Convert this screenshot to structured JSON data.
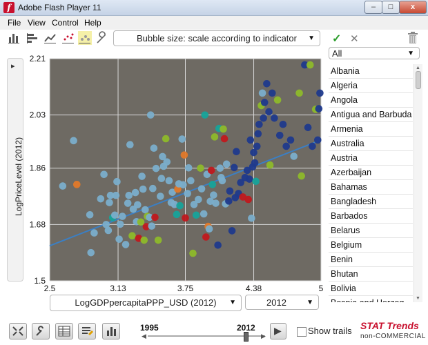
{
  "window": {
    "title": "Adobe Flash Player 11",
    "app_icon": "f",
    "minimize": "–",
    "maximize": "□",
    "close": "x"
  },
  "menu": [
    "File",
    "View",
    "Control",
    "Help"
  ],
  "toolbar": {
    "icons": [
      "bar-chart-icon",
      "horizontal-bar-icon",
      "line-chart-icon",
      "scatter-icon",
      "bubble-chart-icon",
      "wrench-icon"
    ],
    "bubble_size": "Bubble size: scale according to indicator",
    "confirm": "✓",
    "cancel": "✕"
  },
  "sidebar_toggle": "▸",
  "filter": {
    "selected": "All"
  },
  "countries": [
    "Albania",
    "Algeria",
    "Angola",
    "Antigua and Barbuda",
    "Armenia",
    "Australia",
    "Austria",
    "Azerbaijan",
    "Bahamas",
    "Bangladesh",
    "Barbados",
    "Belarus",
    "Belgium",
    "Benin",
    "Bhutan",
    "Bolivia",
    "Bosnia and Herzeg..."
  ],
  "x_selector": {
    "indicator": "LogGDPpercapitaPPP_USD  (2012)",
    "year": "2012"
  },
  "colors": {
    "plot_bg": "#6e6a63",
    "light_blue": "#7aaecb",
    "dark_blue": "#1f3a8c",
    "green": "#8db92a",
    "red": "#c0191e",
    "teal": "#16a39a",
    "orange": "#e0792a",
    "trend": "#3b7fc4",
    "accent_red": "#c8102e"
  },
  "chart_data": {
    "type": "scatter",
    "title": "",
    "xlabel": "LogGDPpercapitaPPP_USD  (2012)",
    "ylabel": "LogPriceLevel (2012)",
    "xlim": [
      2.5,
      5
    ],
    "ylim": [
      1.5,
      2.21
    ],
    "x_ticks": [
      "2.5",
      "3.13",
      "3.75",
      "4.38",
      "5"
    ],
    "y_ticks": [
      "1.5",
      "1.68",
      "1.86",
      "2.03",
      "2.21"
    ],
    "trend_line": {
      "x": [
        2.5,
        5
      ],
      "y": [
        1.612,
        1.95
      ]
    },
    "points": [
      {
        "x": 2.62,
        "y": 1.803,
        "c": "light_blue"
      },
      {
        "x": 2.72,
        "y": 1.948,
        "c": "light_blue"
      },
      {
        "x": 2.75,
        "y": 1.808,
        "c": "orange"
      },
      {
        "x": 2.87,
        "y": 1.711,
        "c": "light_blue"
      },
      {
        "x": 2.91,
        "y": 1.653,
        "c": "light_blue"
      },
      {
        "x": 2.88,
        "y": 1.59,
        "c": "light_blue"
      },
      {
        "x": 2.97,
        "y": 1.762,
        "c": "light_blue"
      },
      {
        "x": 3.0,
        "y": 1.84,
        "c": "light_blue"
      },
      {
        "x": 3.02,
        "y": 1.68,
        "c": "light_blue"
      },
      {
        "x": 3.04,
        "y": 1.661,
        "c": "light_blue"
      },
      {
        "x": 3.05,
        "y": 1.75,
        "c": "light_blue"
      },
      {
        "x": 3.06,
        "y": 1.773,
        "c": "light_blue"
      },
      {
        "x": 3.08,
        "y": 1.702,
        "c": "teal"
      },
      {
        "x": 3.1,
        "y": 1.71,
        "c": "light_blue"
      },
      {
        "x": 3.11,
        "y": 1.773,
        "c": "light_blue"
      },
      {
        "x": 3.12,
        "y": 1.817,
        "c": "light_blue"
      },
      {
        "x": 3.14,
        "y": 1.633,
        "c": "light_blue"
      },
      {
        "x": 3.15,
        "y": 1.681,
        "c": "light_blue"
      },
      {
        "x": 3.17,
        "y": 1.706,
        "c": "light_blue"
      },
      {
        "x": 3.2,
        "y": 1.616,
        "c": "light_blue"
      },
      {
        "x": 3.22,
        "y": 1.748,
        "c": "light_blue"
      },
      {
        "x": 3.23,
        "y": 1.773,
        "c": "light_blue"
      },
      {
        "x": 3.24,
        "y": 1.935,
        "c": "light_blue"
      },
      {
        "x": 3.26,
        "y": 1.644,
        "c": "green"
      },
      {
        "x": 3.27,
        "y": 1.729,
        "c": "light_blue"
      },
      {
        "x": 3.29,
        "y": 1.782,
        "c": "light_blue"
      },
      {
        "x": 3.3,
        "y": 1.689,
        "c": "light_blue"
      },
      {
        "x": 3.31,
        "y": 1.743,
        "c": "light_blue"
      },
      {
        "x": 3.32,
        "y": 1.636,
        "c": "red"
      },
      {
        "x": 3.34,
        "y": 1.688,
        "c": "green"
      },
      {
        "x": 3.35,
        "y": 1.834,
        "c": "light_blue"
      },
      {
        "x": 3.36,
        "y": 1.793,
        "c": "light_blue"
      },
      {
        "x": 3.37,
        "y": 1.63,
        "c": "green"
      },
      {
        "x": 3.38,
        "y": 1.727,
        "c": "light_blue"
      },
      {
        "x": 3.39,
        "y": 1.673,
        "c": "red"
      },
      {
        "x": 3.4,
        "y": 1.706,
        "c": "green"
      },
      {
        "x": 3.42,
        "y": 1.703,
        "c": "light_blue"
      },
      {
        "x": 3.43,
        "y": 2.03,
        "c": "light_blue"
      },
      {
        "x": 3.44,
        "y": 1.675,
        "c": "light_blue"
      },
      {
        "x": 3.45,
        "y": 1.795,
        "c": "light_blue"
      },
      {
        "x": 3.46,
        "y": 1.924,
        "c": "light_blue"
      },
      {
        "x": 3.47,
        "y": 1.703,
        "c": "red"
      },
      {
        "x": 3.48,
        "y": 1.859,
        "c": "light_blue"
      },
      {
        "x": 3.5,
        "y": 1.63,
        "c": "green"
      },
      {
        "x": 3.52,
        "y": 1.77,
        "c": "light_blue"
      },
      {
        "x": 3.53,
        "y": 1.827,
        "c": "light_blue"
      },
      {
        "x": 3.54,
        "y": 1.897,
        "c": "light_blue"
      },
      {
        "x": 3.55,
        "y": 1.866,
        "c": "light_blue"
      },
      {
        "x": 3.57,
        "y": 1.954,
        "c": "green"
      },
      {
        "x": 3.58,
        "y": 1.88,
        "c": "light_blue"
      },
      {
        "x": 3.6,
        "y": 1.82,
        "c": "light_blue"
      },
      {
        "x": 3.62,
        "y": 1.75,
        "c": "light_blue"
      },
      {
        "x": 3.63,
        "y": 1.783,
        "c": "light_blue"
      },
      {
        "x": 3.65,
        "y": 1.744,
        "c": "light_blue"
      },
      {
        "x": 3.67,
        "y": 1.712,
        "c": "teal"
      },
      {
        "x": 3.68,
        "y": 1.793,
        "c": "orange"
      },
      {
        "x": 3.69,
        "y": 1.81,
        "c": "light_blue"
      },
      {
        "x": 3.7,
        "y": 1.74,
        "c": "teal"
      },
      {
        "x": 3.72,
        "y": 1.953,
        "c": "light_blue"
      },
      {
        "x": 3.73,
        "y": 1.807,
        "c": "light_blue"
      },
      {
        "x": 3.74,
        "y": 1.902,
        "c": "orange"
      },
      {
        "x": 3.75,
        "y": 1.701,
        "c": "red"
      },
      {
        "x": 3.77,
        "y": 1.779,
        "c": "light_blue"
      },
      {
        "x": 3.78,
        "y": 1.861,
        "c": "light_blue"
      },
      {
        "x": 3.8,
        "y": 1.82,
        "c": "light_blue"
      },
      {
        "x": 3.82,
        "y": 1.588,
        "c": "green"
      },
      {
        "x": 3.83,
        "y": 1.744,
        "c": "light_blue"
      },
      {
        "x": 3.85,
        "y": 1.71,
        "c": "teal"
      },
      {
        "x": 3.87,
        "y": 1.76,
        "c": "light_blue"
      },
      {
        "x": 3.89,
        "y": 1.86,
        "c": "green"
      },
      {
        "x": 3.9,
        "y": 1.794,
        "c": "light_blue"
      },
      {
        "x": 3.92,
        "y": 1.714,
        "c": "light_blue"
      },
      {
        "x": 3.93,
        "y": 2.03,
        "c": "teal"
      },
      {
        "x": 3.94,
        "y": 1.64,
        "c": "red"
      },
      {
        "x": 3.95,
        "y": 1.84,
        "c": "light_blue"
      },
      {
        "x": 3.96,
        "y": 1.674,
        "c": "orange"
      },
      {
        "x": 3.97,
        "y": 1.666,
        "c": "light_blue"
      },
      {
        "x": 3.98,
        "y": 1.754,
        "c": "light_blue"
      },
      {
        "x": 3.99,
        "y": 1.853,
        "c": "red"
      },
      {
        "x": 4.0,
        "y": 1.808,
        "c": "teal"
      },
      {
        "x": 4.01,
        "y": 1.774,
        "c": "light_blue"
      },
      {
        "x": 4.02,
        "y": 1.96,
        "c": "green"
      },
      {
        "x": 4.03,
        "y": 1.748,
        "c": "light_blue"
      },
      {
        "x": 4.05,
        "y": 1.614,
        "c": "dark_blue"
      },
      {
        "x": 4.06,
        "y": 1.987,
        "c": "teal"
      },
      {
        "x": 4.07,
        "y": 1.86,
        "c": "light_blue"
      },
      {
        "x": 4.08,
        "y": 1.83,
        "c": "light_blue"
      },
      {
        "x": 4.09,
        "y": 1.82,
        "c": "light_blue"
      },
      {
        "x": 4.1,
        "y": 1.985,
        "c": "green"
      },
      {
        "x": 4.11,
        "y": 1.954,
        "c": "red"
      },
      {
        "x": 4.12,
        "y": 1.746,
        "c": "light_blue"
      },
      {
        "x": 4.13,
        "y": 1.873,
        "c": "light_blue"
      },
      {
        "x": 4.15,
        "y": 1.755,
        "c": "dark_blue"
      },
      {
        "x": 4.16,
        "y": 1.787,
        "c": "dark_blue"
      },
      {
        "x": 4.18,
        "y": 1.66,
        "c": "dark_blue"
      },
      {
        "x": 4.2,
        "y": 1.862,
        "c": "dark_blue"
      },
      {
        "x": 4.21,
        "y": 1.766,
        "c": "dark_blue"
      },
      {
        "x": 4.22,
        "y": 1.913,
        "c": "dark_blue"
      },
      {
        "x": 4.24,
        "y": 1.779,
        "c": "dark_blue"
      },
      {
        "x": 4.26,
        "y": 1.814,
        "c": "dark_blue"
      },
      {
        "x": 4.28,
        "y": 1.768,
        "c": "red"
      },
      {
        "x": 4.3,
        "y": 1.83,
        "c": "dark_blue"
      },
      {
        "x": 4.32,
        "y": 1.853,
        "c": "dark_blue"
      },
      {
        "x": 4.33,
        "y": 1.76,
        "c": "red"
      },
      {
        "x": 4.34,
        "y": 1.825,
        "c": "dark_blue"
      },
      {
        "x": 4.35,
        "y": 1.95,
        "c": "dark_blue"
      },
      {
        "x": 4.36,
        "y": 1.7,
        "c": "light_blue"
      },
      {
        "x": 4.37,
        "y": 1.864,
        "c": "dark_blue"
      },
      {
        "x": 4.38,
        "y": 1.91,
        "c": "dark_blue"
      },
      {
        "x": 4.39,
        "y": 1.877,
        "c": "dark_blue"
      },
      {
        "x": 4.4,
        "y": 1.818,
        "c": "teal"
      },
      {
        "x": 4.41,
        "y": 1.93,
        "c": "dark_blue"
      },
      {
        "x": 4.42,
        "y": 1.97,
        "c": "dark_blue"
      },
      {
        "x": 4.43,
        "y": 2.0,
        "c": "dark_blue"
      },
      {
        "x": 4.45,
        "y": 2.06,
        "c": "green"
      },
      {
        "x": 4.46,
        "y": 2.1,
        "c": "light_blue"
      },
      {
        "x": 4.47,
        "y": 2.02,
        "c": "dark_blue"
      },
      {
        "x": 4.48,
        "y": 2.07,
        "c": "dark_blue"
      },
      {
        "x": 4.5,
        "y": 2.13,
        "c": "dark_blue"
      },
      {
        "x": 4.52,
        "y": 2.04,
        "c": "dark_blue"
      },
      {
        "x": 4.53,
        "y": 1.87,
        "c": "green"
      },
      {
        "x": 4.55,
        "y": 2.1,
        "c": "dark_blue"
      },
      {
        "x": 4.57,
        "y": 2.02,
        "c": "dark_blue"
      },
      {
        "x": 4.6,
        "y": 2.078,
        "c": "green"
      },
      {
        "x": 4.62,
        "y": 1.965,
        "c": "dark_blue"
      },
      {
        "x": 4.65,
        "y": 2.0,
        "c": "dark_blue"
      },
      {
        "x": 4.68,
        "y": 1.93,
        "c": "dark_blue"
      },
      {
        "x": 4.72,
        "y": 1.95,
        "c": "dark_blue"
      },
      {
        "x": 4.75,
        "y": 1.898,
        "c": "light_blue"
      },
      {
        "x": 4.8,
        "y": 2.1,
        "c": "green"
      },
      {
        "x": 4.82,
        "y": 1.835,
        "c": "green"
      },
      {
        "x": 4.85,
        "y": 2.19,
        "c": "dark_blue"
      },
      {
        "x": 4.88,
        "y": 1.99,
        "c": "dark_blue"
      },
      {
        "x": 4.9,
        "y": 2.19,
        "c": "green"
      },
      {
        "x": 4.92,
        "y": 1.93,
        "c": "dark_blue"
      },
      {
        "x": 4.95,
        "y": 2.048,
        "c": "green"
      },
      {
        "x": 4.97,
        "y": 1.95,
        "c": "dark_blue"
      },
      {
        "x": 4.98,
        "y": 2.05,
        "c": "dark_blue"
      },
      {
        "x": 4.99,
        "y": 2.1,
        "c": "dark_blue"
      }
    ]
  },
  "timeline": {
    "start": "1995",
    "end": "2012",
    "play": "▶"
  },
  "show_trails": "Show trails",
  "brand": {
    "name": "STAT Trends",
    "subtitle": "non-COMMERCIAL"
  }
}
